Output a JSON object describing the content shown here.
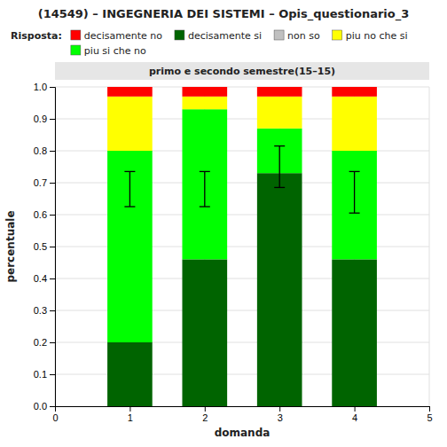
{
  "chart_data": {
    "type": "bar",
    "stacked": true,
    "title": "(14549) – INGEGNERIA DEI SISTEMI – Opis_questionario_3",
    "subtitle": "primo e secondo semestre(15–15)",
    "x_label": "domanda",
    "y_label": "percentuale",
    "legend_title": "Risposta:",
    "legend": "top",
    "grid": true,
    "x": [
      1,
      2,
      3,
      4
    ],
    "xlim": [
      0,
      5
    ],
    "xticks": [
      0,
      1,
      2,
      3,
      4,
      5
    ],
    "ylim": [
      0,
      1.0
    ],
    "yticks": [
      {
        "value": 0,
        "label": "0.0"
      },
      0.1,
      0.2,
      0.3,
      0.4,
      0.5,
      0.6,
      0.7,
      0.8,
      0.9,
      {
        "value": 1.0,
        "label": "1.0"
      }
    ],
    "series": [
      {
        "name": "decisamente si",
        "color": "#006400",
        "values": [
          0.2,
          0.46,
          0.73,
          0.46
        ]
      },
      {
        "name": "piu si che no",
        "color": "#00FF00",
        "values": [
          0.6,
          0.47,
          0.14,
          0.34
        ]
      },
      {
        "name": "non so",
        "color": "#C0C0C0",
        "values": [
          0.0,
          0.0,
          0.0,
          0.0
        ]
      },
      {
        "name": "piu no che si",
        "color": "#FFFF00",
        "values": [
          0.17,
          0.04,
          0.1,
          0.17
        ]
      },
      {
        "name": "decisamente no",
        "color": "#FF0000",
        "values": [
          0.03,
          0.03,
          0.03,
          0.03
        ]
      }
    ],
    "error_bars": {
      "centers": [
        0.68,
        0.68,
        0.75,
        0.67
      ],
      "errors": [
        0.055,
        0.055,
        0.065,
        0.065
      ]
    }
  }
}
